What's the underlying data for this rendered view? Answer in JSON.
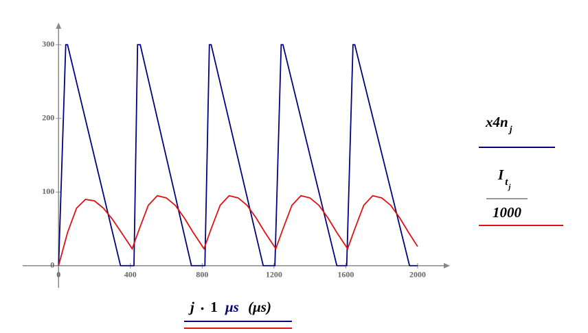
{
  "chart_data": {
    "type": "line",
    "x_label": [
      "j",
      "•",
      "1",
      "μs",
      "(μs)"
    ],
    "xlim": [
      -200,
      2180
    ],
    "ylim": [
      -30,
      330
    ],
    "xticks": [
      0,
      400,
      800,
      1200,
      1600,
      2000
    ],
    "yticks": [
      0,
      100,
      200,
      300
    ],
    "grid": false,
    "series": [
      {
        "name": "x4n",
        "subscript": "j",
        "color": "#000080",
        "x": [
          0,
          40,
          50,
          345,
          420,
          440,
          455,
          740,
          815,
          840,
          850,
          1140,
          1205,
          1240,
          1250,
          1550,
          1605,
          1640,
          1650,
          1955,
          2000
        ],
        "values": [
          0,
          300,
          300,
          0,
          0,
          300,
          300,
          0,
          0,
          300,
          300,
          0,
          0,
          300,
          300,
          0,
          0,
          300,
          300,
          0,
          0
        ]
      },
      {
        "name": "I",
        "subscript": "t",
        "subsubscript": "j",
        "denominator": "1000",
        "color": "#e01010",
        "x": [
          0,
          50,
          100,
          150,
          200,
          250,
          300,
          350,
          410,
          450,
          500,
          550,
          600,
          650,
          700,
          750,
          810,
          850,
          900,
          950,
          1000,
          1050,
          1100,
          1150,
          1210,
          1250,
          1300,
          1350,
          1400,
          1450,
          1500,
          1550,
          1610,
          1650,
          1700,
          1750,
          1800,
          1850,
          1900,
          1950,
          2000
        ],
        "values": [
          0,
          45,
          78,
          90,
          88,
          78,
          63,
          45,
          23,
          50,
          82,
          95,
          92,
          82,
          65,
          45,
          23,
          50,
          82,
          95,
          92,
          82,
          65,
          45,
          23,
          50,
          82,
          95,
          92,
          82,
          65,
          45,
          23,
          50,
          82,
          95,
          92,
          82,
          65,
          45,
          26
        ]
      }
    ]
  }
}
